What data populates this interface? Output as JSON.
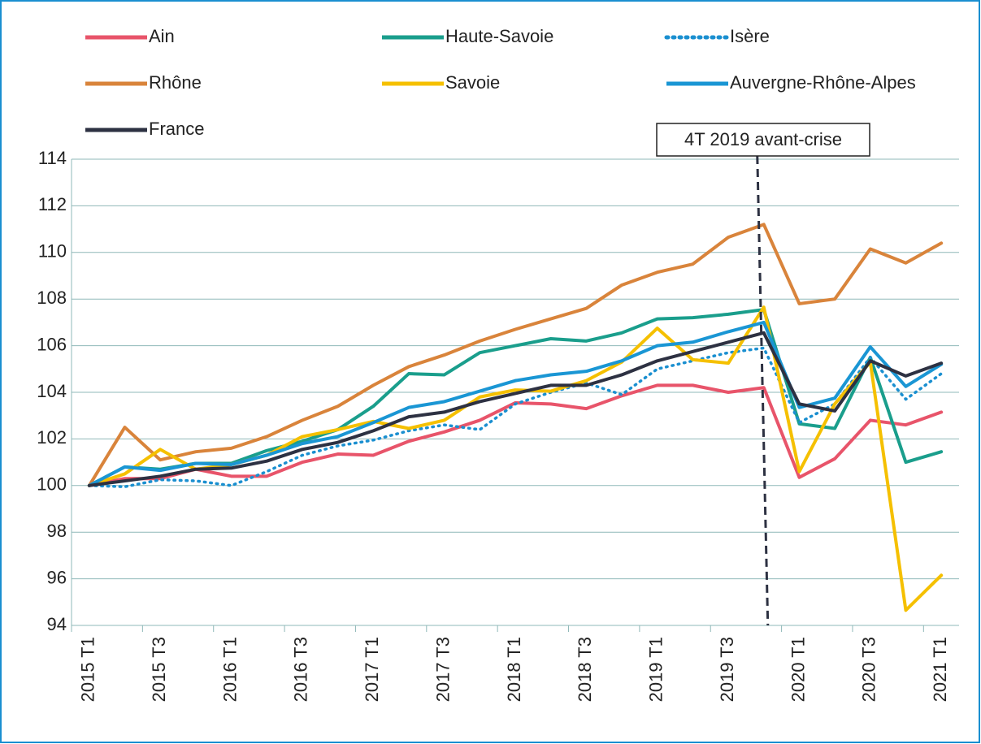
{
  "chart_data": {
    "type": "line",
    "annotation": "4T 2019 avant-crise",
    "categories": [
      "2015 T1",
      null,
      "2015 T3",
      null,
      "2016 T1",
      null,
      "2016 T3",
      null,
      "2017 T1",
      null,
      "2017 T3",
      null,
      "2018 T1",
      null,
      "2018 T3",
      null,
      "2019 T1",
      null,
      "2019 T3",
      null,
      "2020 T1",
      null,
      "2020 T3",
      null,
      "2021 T1"
    ],
    "ylim": [
      94,
      114
    ],
    "yticks": [
      94,
      96,
      98,
      100,
      102,
      104,
      106,
      108,
      110,
      112,
      114
    ],
    "grid": true,
    "legend": "top",
    "series": [
      {
        "name": "Ain",
        "color": "#e8546a",
        "values": [
          100,
          100.3,
          100.3,
          100.7,
          100.4,
          100.4,
          101.0,
          101.35,
          101.3,
          101.9,
          102.3,
          102.8,
          103.55,
          103.5,
          103.3,
          103.85,
          104.3,
          104.3,
          104.0,
          104.2,
          100.35,
          101.15,
          102.8,
          102.6,
          103.15
        ]
      },
      {
        "name": "Haute-Savoie",
        "color": "#1a9e8c",
        "values": [
          100,
          100.8,
          100.7,
          100.95,
          100.95,
          101.5,
          101.9,
          102.4,
          103.4,
          104.8,
          104.75,
          105.7,
          106.0,
          106.3,
          106.2,
          106.55,
          107.15,
          107.2,
          107.35,
          107.55,
          102.65,
          102.45,
          105.5,
          101.0,
          101.45
        ]
      },
      {
        "name": "Isère",
        "color": "#1a8fd0",
        "dotted": true,
        "values": [
          100,
          99.95,
          100.25,
          100.2,
          100.0,
          100.6,
          101.3,
          101.7,
          101.95,
          102.35,
          102.6,
          102.4,
          103.5,
          104.0,
          104.4,
          103.9,
          105.0,
          105.35,
          105.7,
          105.9,
          102.7,
          103.5,
          105.5,
          103.7,
          104.8
        ]
      },
      {
        "name": "Rhône",
        "color": "#d9843b",
        "values": [
          100,
          102.5,
          101.1,
          101.45,
          101.6,
          102.1,
          102.8,
          103.4,
          104.3,
          105.1,
          105.6,
          106.2,
          106.7,
          107.15,
          107.6,
          108.6,
          109.15,
          109.5,
          110.65,
          111.2,
          107.8,
          108.0,
          110.15,
          109.55,
          110.4
        ]
      },
      {
        "name": "Savoie",
        "color": "#f5c000",
        "values": [
          100,
          100.5,
          101.55,
          100.7,
          100.9,
          101.3,
          102.1,
          102.4,
          102.75,
          102.45,
          102.8,
          103.8,
          104.1,
          104.05,
          104.5,
          105.3,
          106.75,
          105.4,
          105.25,
          107.65,
          100.6,
          103.5,
          105.3,
          94.65,
          96.15
        ]
      },
      {
        "name": "Auvergne-Rhône-Alpes",
        "color": "#1a96d4",
        "values": [
          100,
          100.8,
          100.65,
          100.95,
          100.9,
          101.3,
          101.8,
          102.1,
          102.7,
          103.35,
          103.6,
          104.05,
          104.5,
          104.75,
          104.9,
          105.35,
          106.0,
          106.15,
          106.6,
          107.0,
          103.35,
          103.75,
          105.95,
          104.25,
          105.2
        ]
      },
      {
        "name": "France",
        "color": "#2d3142",
        "values": [
          100,
          100.2,
          100.4,
          100.7,
          100.75,
          101.05,
          101.55,
          101.85,
          102.35,
          102.95,
          103.15,
          103.6,
          103.95,
          104.3,
          104.3,
          104.75,
          105.35,
          105.75,
          106.15,
          106.55,
          103.5,
          103.2,
          105.35,
          104.7,
          105.25
        ]
      }
    ]
  }
}
